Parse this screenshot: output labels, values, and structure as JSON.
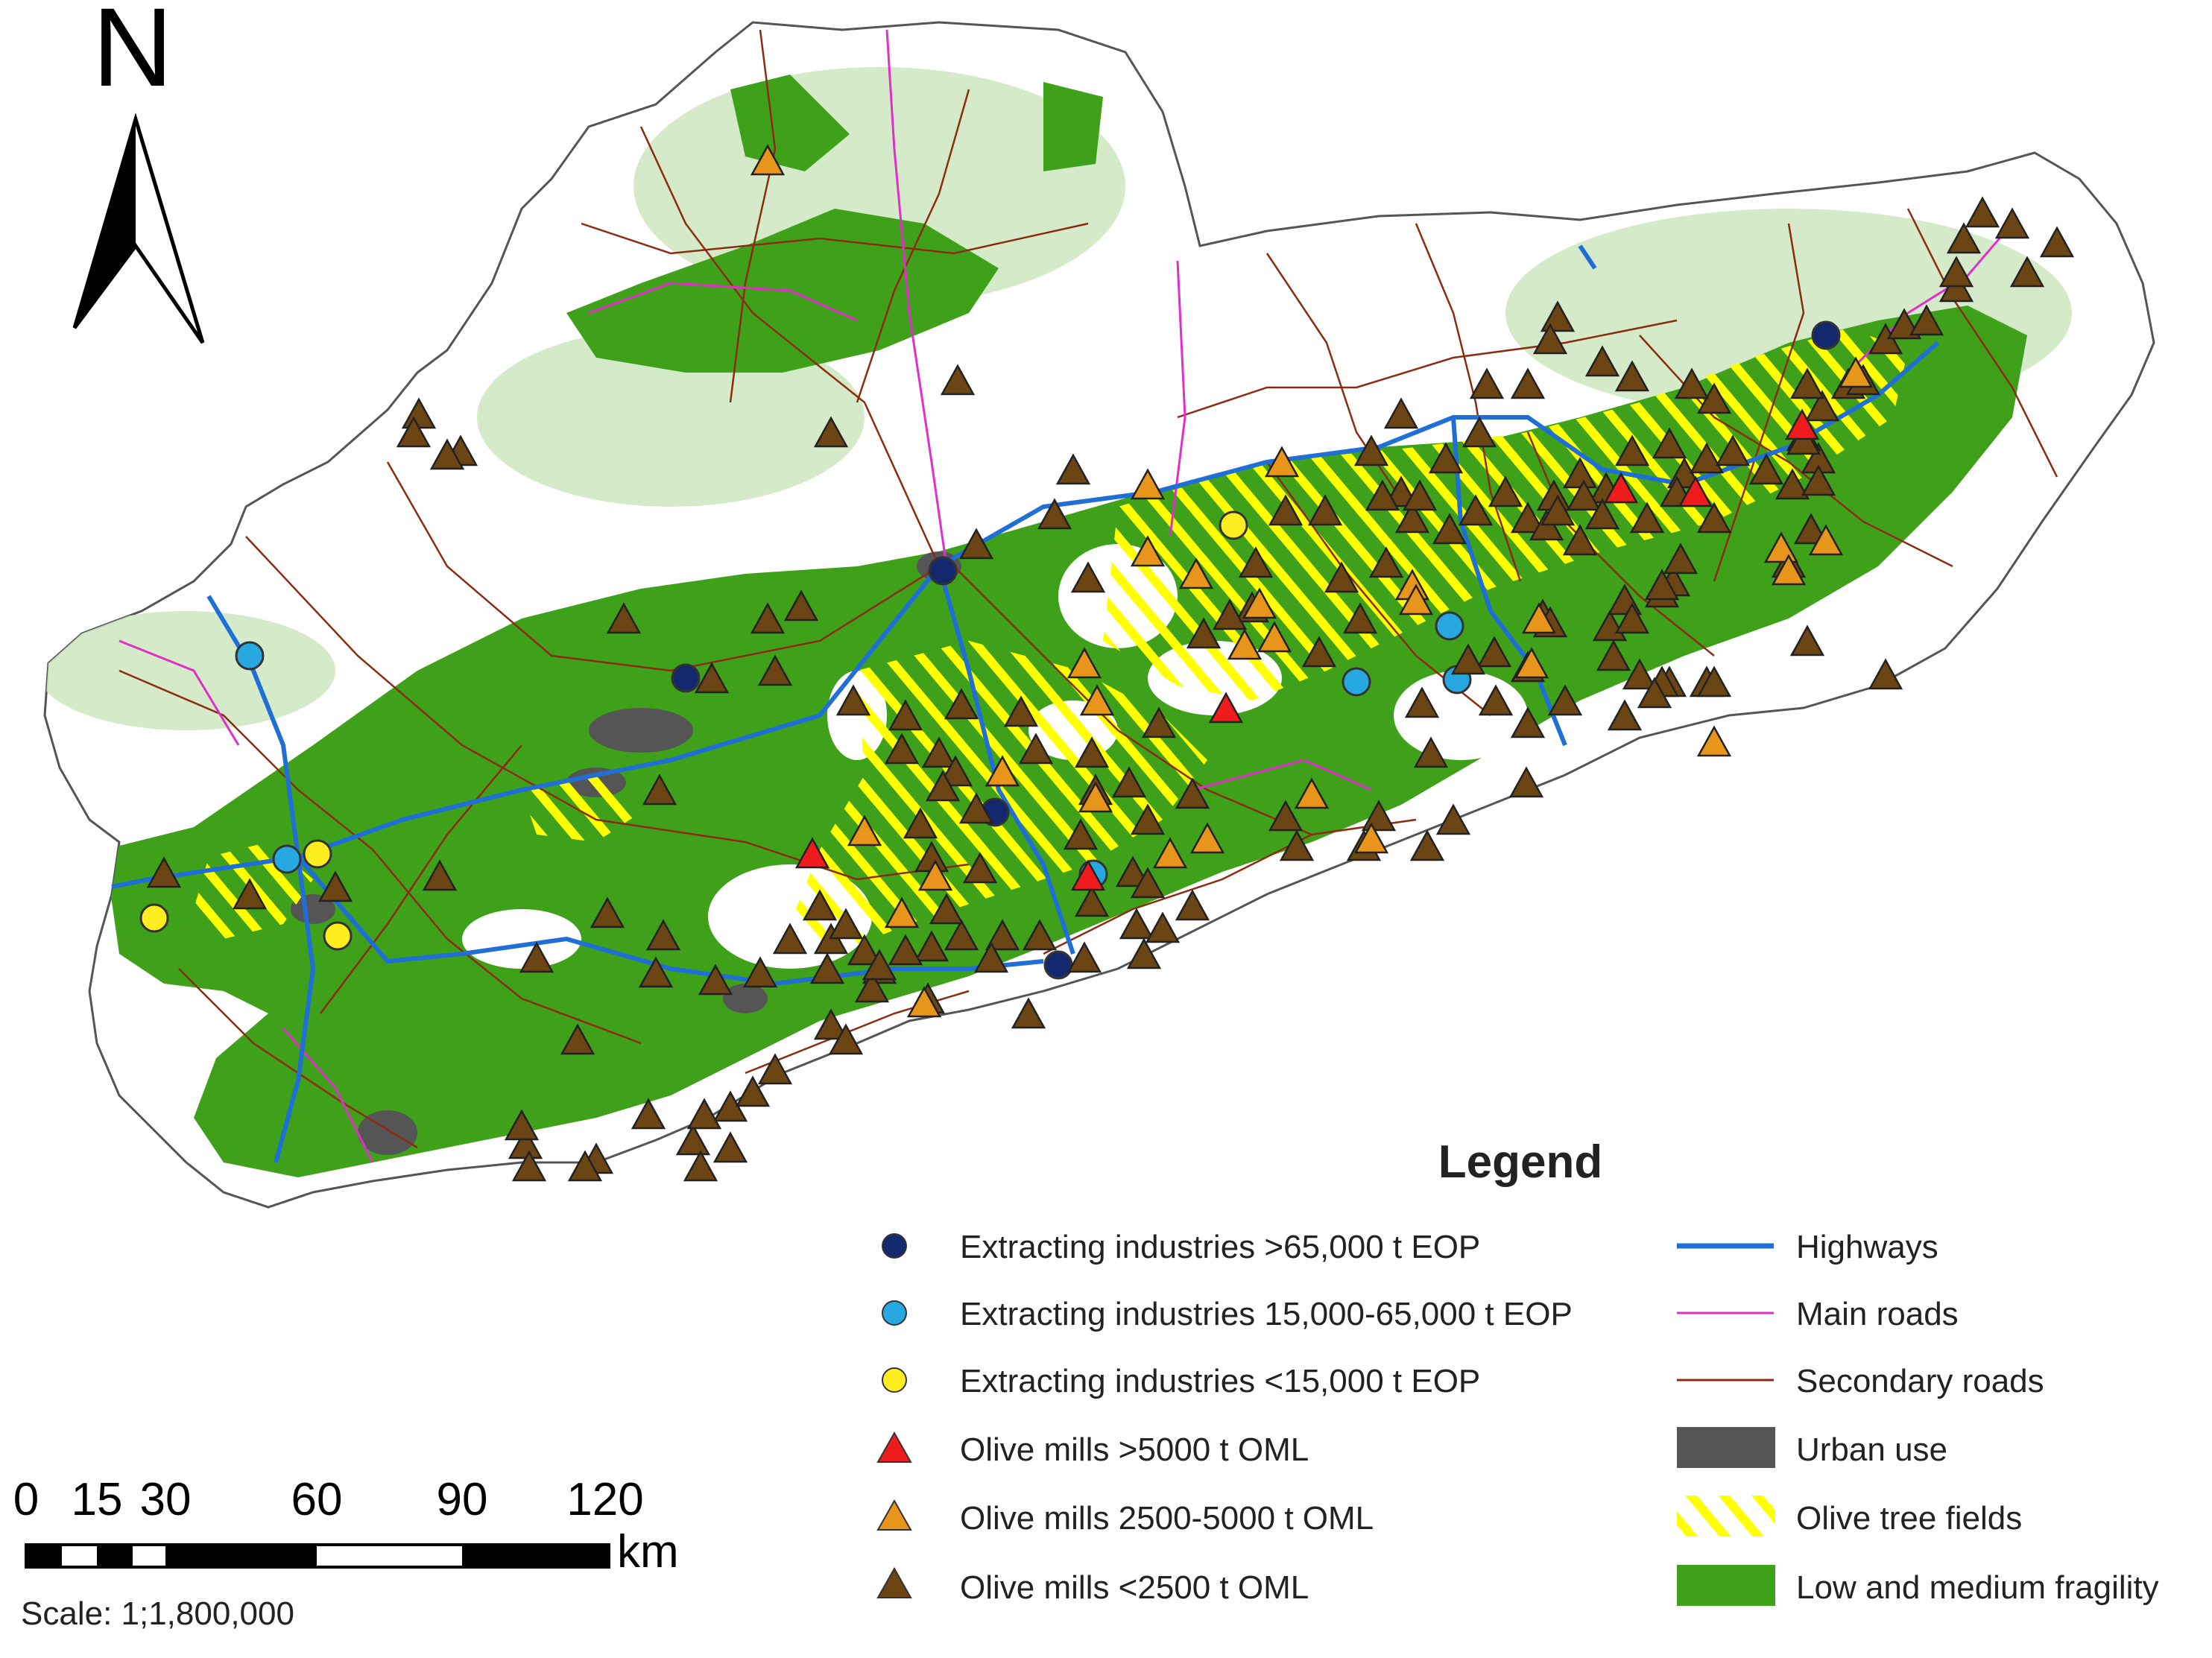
{
  "north_arrow": {
    "letter": "N"
  },
  "legend": {
    "title": "Legend",
    "points": [
      {
        "label": "Extracting industries >65,000 t EOP",
        "shape": "circle",
        "color": "#14286e"
      },
      {
        "label": "Extracting industries 15,000-65,000 t EOP",
        "shape": "circle",
        "color": "#27a8e0"
      },
      {
        "label": "Extracting industries <15,000 t EOP",
        "shape": "circle",
        "color": "#ffee1f"
      },
      {
        "label": "Olive mills >5000 t OML",
        "shape": "triangle",
        "color": "#ee1c1c"
      },
      {
        "label": "Olive mills 2500-5000 t OML",
        "shape": "triangle",
        "color": "#e8951c"
      },
      {
        "label": "Olive mills <2500 t OML",
        "shape": "triangle",
        "color": "#6b4514"
      }
    ],
    "lines": [
      {
        "label": "Highways",
        "kind": "line",
        "color": "#1f6fd6"
      },
      {
        "label": "Main roads",
        "kind": "line",
        "color": "#e030c8"
      },
      {
        "label": "Secondary roads",
        "kind": "line",
        "color": "#8b2c12"
      },
      {
        "label": "Urban use",
        "kind": "fill",
        "color": "#555555"
      },
      {
        "label": "Olive tree fields",
        "kind": "hatch",
        "color": "#ffff00"
      },
      {
        "label": "Low and medium fragility",
        "kind": "fill",
        "color": "#3fa11a"
      }
    ]
  },
  "scale_bar": {
    "ticks": [
      "0",
      "15",
      "30",
      "60",
      "90",
      "120"
    ],
    "unit": "km",
    "scale_text": "Scale: 1;1,800,000"
  },
  "colors": {
    "fragility_green": "#3fa11a",
    "urban_gray": "#555555",
    "olive_hatch": "#ffff00",
    "highway_blue": "#1f6fd6",
    "main_road_magenta": "#e030c8",
    "secondary_road_brown": "#8b2c12"
  }
}
